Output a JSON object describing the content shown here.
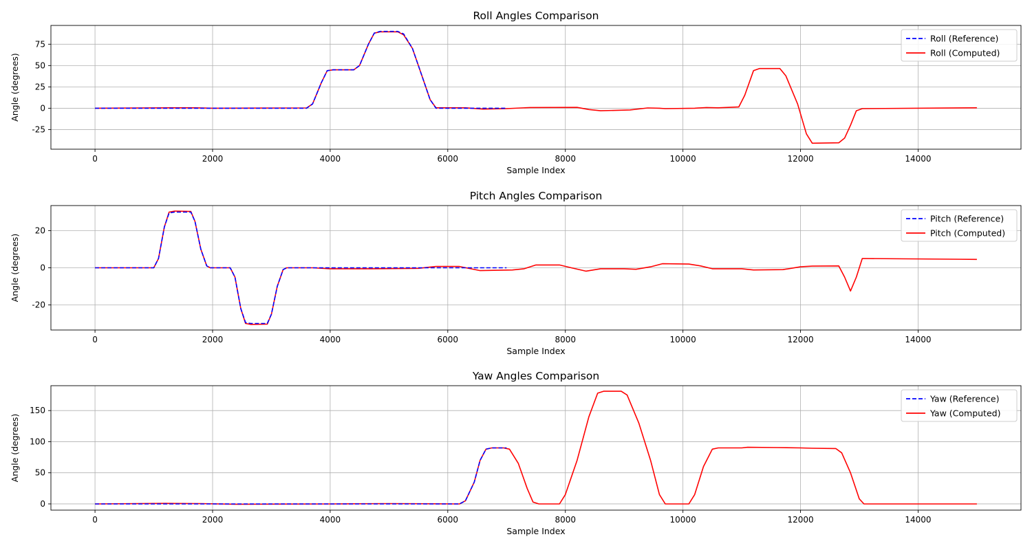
{
  "chart_data": [
    {
      "type": "line",
      "title": "Roll Angles Comparison",
      "xlabel": "Sample Index",
      "ylabel": "Angle (degrees)",
      "xlim": [
        -750,
        15750
      ],
      "ylim": [
        -48,
        97
      ],
      "xticks": [
        0,
        2000,
        4000,
        6000,
        8000,
        10000,
        12000,
        14000
      ],
      "yticks": [
        -25,
        0,
        25,
        50,
        75
      ],
      "grid": true,
      "legend_position": "top-right",
      "series": [
        {
          "name": "Roll (Reference)",
          "color": "#0000ff",
          "style": "dashed",
          "points": [
            [
              0,
              0
            ],
            [
              3600,
              0
            ],
            [
              3700,
              5
            ],
            [
              3850,
              30
            ],
            [
              3950,
              44
            ],
            [
              4050,
              45
            ],
            [
              4400,
              45
            ],
            [
              4500,
              50
            ],
            [
              4650,
              75
            ],
            [
              4750,
              88
            ],
            [
              4850,
              90
            ],
            [
              5150,
              90
            ],
            [
              5250,
              87
            ],
            [
              5400,
              70
            ],
            [
              5550,
              40
            ],
            [
              5700,
              10
            ],
            [
              5800,
              0
            ],
            [
              7000,
              0
            ]
          ]
        },
        {
          "name": "Roll (Computed)",
          "color": "#ff0000",
          "style": "solid",
          "points": [
            [
              0,
              0
            ],
            [
              1300,
              0.5
            ],
            [
              1700,
              0.5
            ],
            [
              2000,
              0
            ],
            [
              3600,
              0.3
            ],
            [
              3700,
              5
            ],
            [
              3850,
              30
            ],
            [
              3950,
              44
            ],
            [
              4050,
              45
            ],
            [
              4400,
              45
            ],
            [
              4500,
              50
            ],
            [
              4650,
              75
            ],
            [
              4750,
              88
            ],
            [
              4850,
              89.5
            ],
            [
              5150,
              89.5
            ],
            [
              5250,
              86
            ],
            [
              5400,
              70
            ],
            [
              5550,
              40
            ],
            [
              5700,
              10
            ],
            [
              5800,
              0.5
            ],
            [
              6300,
              0.5
            ],
            [
              6600,
              -1
            ],
            [
              7000,
              -0.5
            ],
            [
              7400,
              0.8
            ],
            [
              8200,
              1
            ],
            [
              8400,
              -1.5
            ],
            [
              8600,
              -3
            ],
            [
              9100,
              -2
            ],
            [
              9400,
              0.3
            ],
            [
              9600,
              0
            ],
            [
              9700,
              -0.5
            ],
            [
              10200,
              0
            ],
            [
              10400,
              0.8
            ],
            [
              10600,
              0.5
            ],
            [
              10950,
              1.5
            ],
            [
              11050,
              15
            ],
            [
              11200,
              44
            ],
            [
              11300,
              46.5
            ],
            [
              11650,
              46.5
            ],
            [
              11750,
              38
            ],
            [
              11950,
              5
            ],
            [
              12100,
              -30
            ],
            [
              12200,
              -41
            ],
            [
              12650,
              -40.5
            ],
            [
              12750,
              -35
            ],
            [
              12850,
              -20
            ],
            [
              12950,
              -3
            ],
            [
              13050,
              -0.5
            ],
            [
              15000,
              0.5
            ]
          ]
        }
      ]
    },
    {
      "type": "line",
      "title": "Pitch Angles Comparison",
      "xlabel": "Sample Index",
      "ylabel": "Angle (degrees)",
      "xlim": [
        -750,
        15750
      ],
      "ylim": [
        -33.5,
        33.5
      ],
      "xticks": [
        0,
        2000,
        4000,
        6000,
        8000,
        10000,
        12000,
        14000
      ],
      "yticks": [
        -20,
        0,
        20
      ],
      "grid": true,
      "legend_position": "top-right",
      "series": [
        {
          "name": "Pitch (Reference)",
          "color": "#0000ff",
          "style": "dashed",
          "points": [
            [
              0,
              0
            ],
            [
              1000,
              0
            ],
            [
              1080,
              5
            ],
            [
              1180,
              22
            ],
            [
              1260,
              29.5
            ],
            [
              1350,
              30
            ],
            [
              1630,
              30
            ],
            [
              1700,
              25
            ],
            [
              1800,
              10
            ],
            [
              1900,
              1
            ],
            [
              1960,
              0
            ],
            [
              2300,
              0
            ],
            [
              2380,
              -5
            ],
            [
              2480,
              -22
            ],
            [
              2560,
              -29.5
            ],
            [
              2650,
              -30
            ],
            [
              2930,
              -30
            ],
            [
              3000,
              -25
            ],
            [
              3100,
              -10
            ],
            [
              3200,
              -1
            ],
            [
              3260,
              0
            ],
            [
              7000,
              0
            ]
          ]
        },
        {
          "name": "Pitch (Computed)",
          "color": "#ff0000",
          "style": "solid",
          "points": [
            [
              0,
              0
            ],
            [
              1000,
              0
            ],
            [
              1080,
              5
            ],
            [
              1180,
              22
            ],
            [
              1260,
              30
            ],
            [
              1350,
              30.5
            ],
            [
              1630,
              30.3
            ],
            [
              1700,
              25
            ],
            [
              1800,
              10
            ],
            [
              1900,
              1
            ],
            [
              1960,
              0
            ],
            [
              2300,
              0
            ],
            [
              2380,
              -5
            ],
            [
              2480,
              -22
            ],
            [
              2560,
              -30
            ],
            [
              2650,
              -30.5
            ],
            [
              2930,
              -30.3
            ],
            [
              3000,
              -25
            ],
            [
              3100,
              -10
            ],
            [
              3200,
              -1
            ],
            [
              3260,
              0
            ],
            [
              3700,
              0
            ],
            [
              4000,
              -0.5
            ],
            [
              4700,
              -0.5
            ],
            [
              5500,
              -0.3
            ],
            [
              5800,
              0.7
            ],
            [
              6200,
              0.7
            ],
            [
              6550,
              -1.5
            ],
            [
              7100,
              -1.2
            ],
            [
              7300,
              -0.5
            ],
            [
              7500,
              1.5
            ],
            [
              7900,
              1.5
            ],
            [
              8100,
              0
            ],
            [
              8350,
              -1.8
            ],
            [
              8600,
              -0.5
            ],
            [
              9000,
              -0.5
            ],
            [
              9200,
              -0.8
            ],
            [
              9450,
              0.5
            ],
            [
              9650,
              2.2
            ],
            [
              10100,
              2
            ],
            [
              10300,
              1
            ],
            [
              10500,
              -0.5
            ],
            [
              11000,
              -0.5
            ],
            [
              11200,
              -1.2
            ],
            [
              11700,
              -1
            ],
            [
              12000,
              0.5
            ],
            [
              12200,
              0.9
            ],
            [
              12650,
              1
            ],
            [
              12750,
              -5
            ],
            [
              12850,
              -12.5
            ],
            [
              12950,
              -5
            ],
            [
              13050,
              5
            ],
            [
              15000,
              4.5
            ]
          ]
        }
      ]
    },
    {
      "type": "line",
      "title": "Yaw Angles Comparison",
      "xlabel": "Sample Index",
      "ylabel": "Angle (degrees)",
      "xlim": [
        -750,
        15750
      ],
      "ylim": [
        -10,
        190
      ],
      "xticks": [
        0,
        2000,
        4000,
        6000,
        8000,
        10000,
        12000,
        14000
      ],
      "yticks": [
        0,
        50,
        100,
        150
      ],
      "grid": true,
      "legend_position": "top-right",
      "series": [
        {
          "name": "Yaw (Reference)",
          "color": "#0000ff",
          "style": "dashed",
          "points": [
            [
              0,
              0
            ],
            [
              6200,
              0
            ],
            [
              6300,
              5
            ],
            [
              6450,
              35
            ],
            [
              6550,
              70
            ],
            [
              6650,
              88
            ],
            [
              6750,
              90
            ],
            [
              7000,
              90
            ]
          ]
        },
        {
          "name": "Yaw (Computed)",
          "color": "#ff0000",
          "style": "solid",
          "points": [
            [
              0,
              0
            ],
            [
              1200,
              0.8
            ],
            [
              1800,
              0.5
            ],
            [
              2400,
              -0.5
            ],
            [
              3100,
              -0.3
            ],
            [
              4000,
              0
            ],
            [
              5000,
              0.5
            ],
            [
              6200,
              0
            ],
            [
              6300,
              5
            ],
            [
              6450,
              35
            ],
            [
              6550,
              70
            ],
            [
              6650,
              88
            ],
            [
              6750,
              90
            ],
            [
              6950,
              90
            ],
            [
              7050,
              88
            ],
            [
              7200,
              65
            ],
            [
              7350,
              25
            ],
            [
              7450,
              3
            ],
            [
              7550,
              0
            ],
            [
              7900,
              0
            ],
            [
              8000,
              15
            ],
            [
              8200,
              70
            ],
            [
              8400,
              140
            ],
            [
              8550,
              178
            ],
            [
              8650,
              181
            ],
            [
              8950,
              181
            ],
            [
              9050,
              175
            ],
            [
              9250,
              130
            ],
            [
              9450,
              70
            ],
            [
              9600,
              15
            ],
            [
              9700,
              0
            ],
            [
              10100,
              0
            ],
            [
              10200,
              15
            ],
            [
              10350,
              60
            ],
            [
              10500,
              88
            ],
            [
              10600,
              90
            ],
            [
              11000,
              90
            ],
            [
              11100,
              91
            ],
            [
              11600,
              90.5
            ],
            [
              12000,
              90
            ],
            [
              12200,
              89.5
            ],
            [
              12600,
              89
            ],
            [
              12700,
              82
            ],
            [
              12850,
              50
            ],
            [
              13000,
              8
            ],
            [
              13080,
              0
            ],
            [
              15000,
              0
            ]
          ]
        }
      ]
    }
  ]
}
